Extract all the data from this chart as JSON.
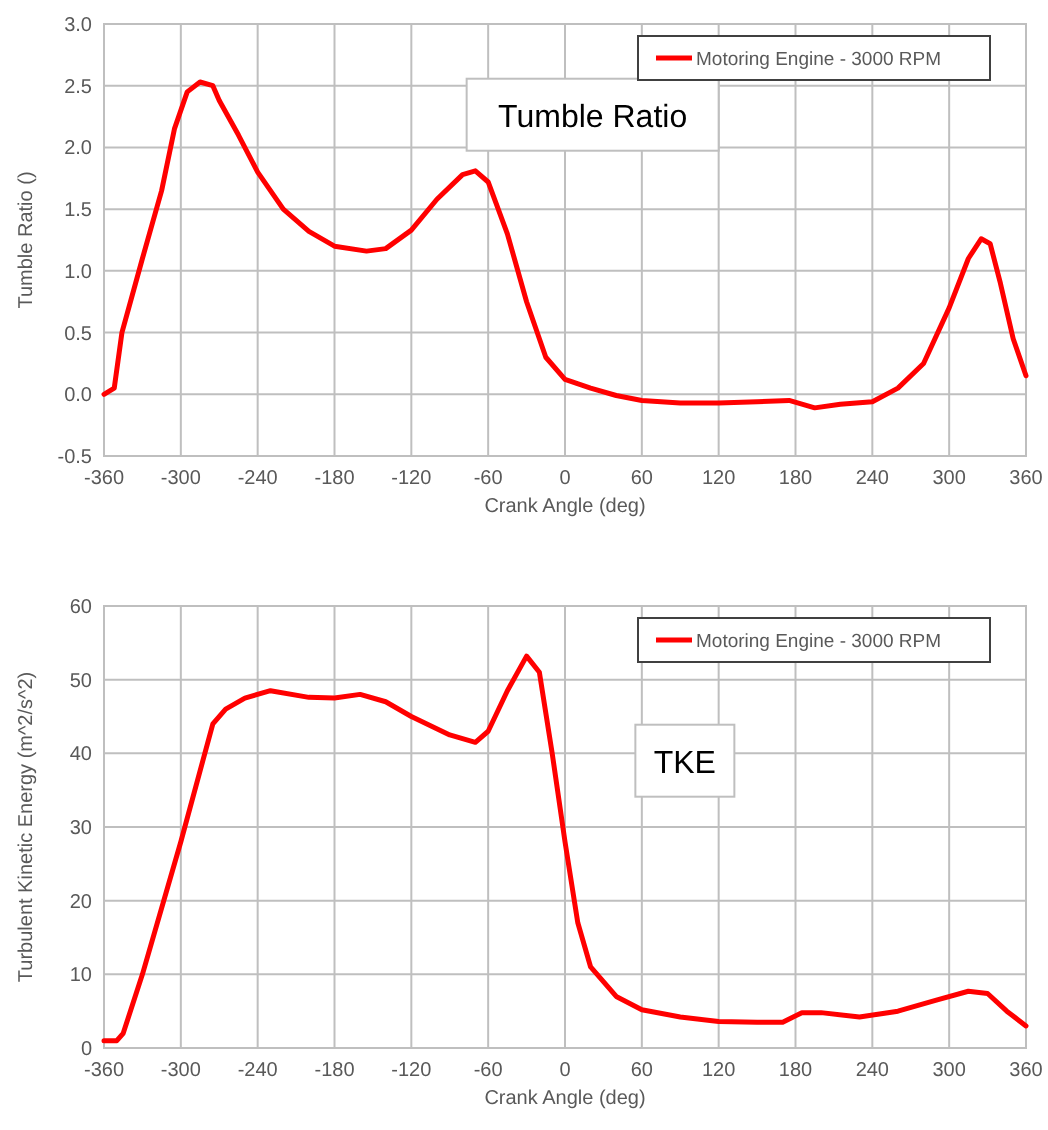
{
  "chart_data": [
    {
      "type": "line",
      "xlabel": "Crank Angle (deg)",
      "ylabel": "Tumble Ratio ()",
      "annotations": [
        "Tumble Ratio"
      ],
      "legend": "top right",
      "grid": true,
      "marker": "none",
      "line_style": "solid",
      "xlim": [
        -360,
        360
      ],
      "xticks": [
        -360,
        -300,
        -240,
        -180,
        -120,
        -60,
        0,
        60,
        120,
        180,
        240,
        300,
        360
      ],
      "ylim": [
        -0.5,
        3
      ],
      "yticks": [
        {
          "value": -0.5,
          "label": "-0.5"
        },
        {
          "value": 0,
          "label": "0.0"
        },
        {
          "value": 0.5,
          "label": "0.5"
        },
        {
          "value": 1,
          "label": "1.0"
        },
        {
          "value": 1.5,
          "label": "1.5"
        },
        {
          "value": 2,
          "label": "2.0"
        },
        {
          "value": 2.5,
          "label": "2.5"
        },
        {
          "value": 3,
          "label": "3.0"
        }
      ],
      "x": [
        -360,
        -352,
        -346,
        -330,
        -315,
        -305,
        -295,
        -285,
        -275,
        -270,
        -255,
        -240,
        -220,
        -200,
        -180,
        -155,
        -140,
        -120,
        -100,
        -80,
        -70,
        -60,
        -45,
        -30,
        -15,
        0,
        20,
        40,
        60,
        90,
        120,
        150,
        175,
        195,
        215,
        240,
        260,
        280,
        300,
        315,
        325,
        332,
        340,
        350,
        360
      ],
      "series": [
        {
          "name": "Motoring Engine - 3000 RPM",
          "color": "#ff0000",
          "values": [
            0,
            0.05,
            0.5,
            1.1,
            1.65,
            2.15,
            2.45,
            2.53,
            2.5,
            2.38,
            2.1,
            1.8,
            1.5,
            1.32,
            1.2,
            1.16,
            1.18,
            1.33,
            1.58,
            1.78,
            1.81,
            1.72,
            1.3,
            0.75,
            0.3,
            0.12,
            0.05,
            -0.01,
            -0.05,
            -0.07,
            -0.07,
            -0.06,
            -0.05,
            -0.11,
            -0.08,
            -0.06,
            0.05,
            0.25,
            0.7,
            1.1,
            1.26,
            1.22,
            0.9,
            0.45,
            0.15
          ]
        }
      ]
    },
    {
      "type": "line",
      "xlabel": "Crank Angle (deg)",
      "ylabel": "Turbulent Kinetic Energy  (m^2/s^2)",
      "annotations": [
        "TKE"
      ],
      "legend": "top right",
      "grid": true,
      "marker": "none",
      "line_style": "solid",
      "xlim": [
        -360,
        360
      ],
      "xticks": [
        -360,
        -300,
        -240,
        -180,
        -120,
        -60,
        0,
        60,
        120,
        180,
        240,
        300,
        360
      ],
      "ylim": [
        0,
        60
      ],
      "yticks": [
        0,
        10,
        20,
        30,
        40,
        50,
        60
      ],
      "x": [
        -360,
        -350,
        -345,
        -330,
        -300,
        -275,
        -265,
        -250,
        -230,
        -200,
        -180,
        -160,
        -140,
        -120,
        -90,
        -70,
        -60,
        -45,
        -30,
        -20,
        -10,
        0,
        10,
        20,
        40,
        60,
        90,
        120,
        150,
        170,
        185,
        200,
        230,
        260,
        290,
        315,
        330,
        345,
        360
      ],
      "series": [
        {
          "name": "Motoring Engine - 3000 RPM",
          "color": "#ff0000",
          "values": [
            1,
            1,
            2,
            10,
            28,
            44,
            46,
            47.5,
            48.5,
            47.6,
            47.5,
            48,
            47,
            45,
            42.5,
            41.5,
            43,
            48.5,
            53.2,
            51,
            40,
            28,
            17,
            11,
            7,
            5.2,
            4.2,
            3.6,
            3.5,
            3.5,
            4.8,
            4.8,
            4.2,
            5,
            6.5,
            7.7,
            7.4,
            5,
            3
          ]
        }
      ]
    }
  ]
}
